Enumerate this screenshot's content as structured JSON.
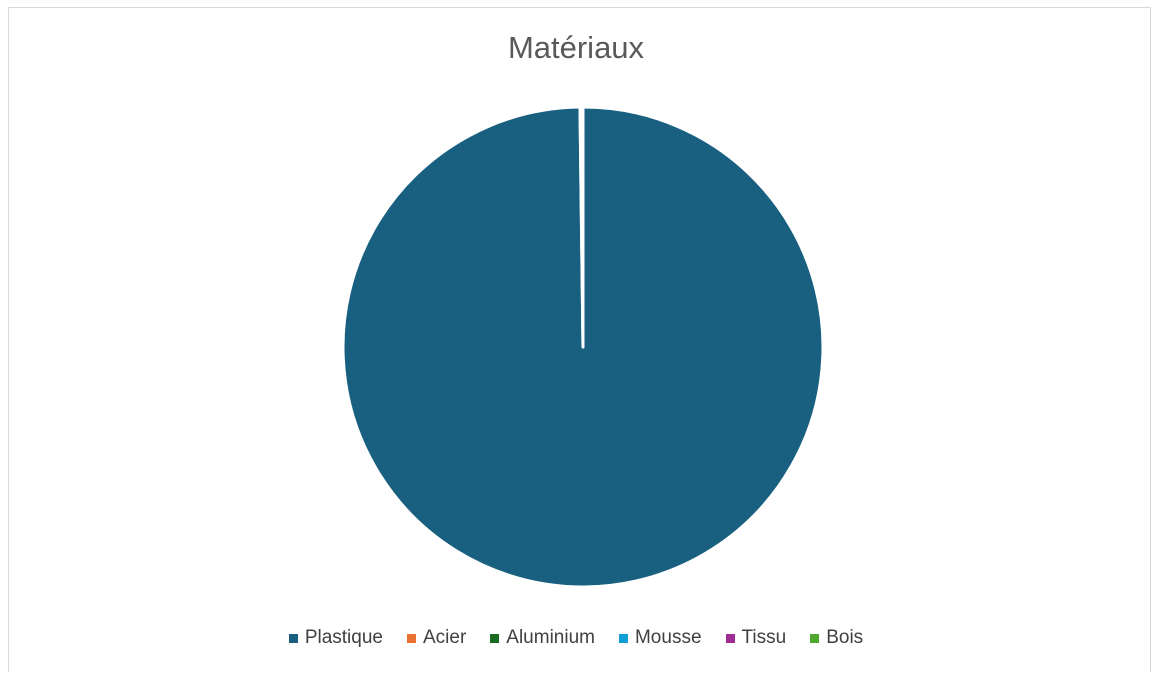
{
  "chart_data": {
    "type": "pie",
    "title": "Matériaux",
    "categories": [
      "Plastique",
      "Acier",
      "Aluminium",
      "Mousse",
      "Tissu",
      "Bois"
    ],
    "values": [
      99.8,
      0.2,
      0,
      0,
      0,
      0
    ],
    "colors": [
      "#185f80",
      "#e97132",
      "#196b24",
      "#0f9ed5",
      "#a02b93",
      "#4ea72e"
    ],
    "legend_position": "bottom"
  }
}
